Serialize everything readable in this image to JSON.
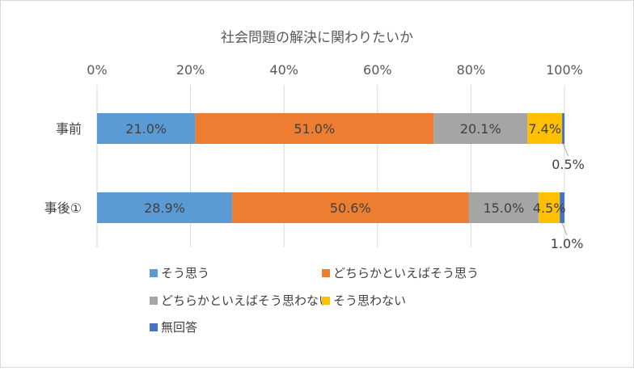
{
  "chart_data": {
    "type": "bar",
    "orientation": "horizontal",
    "stacked": true,
    "percent_stacked": true,
    "title": "社会問題の解決に関わりたいか",
    "categories": [
      "事前",
      "事後①"
    ],
    "x_ticks": [
      "0%",
      "20%",
      "40%",
      "60%",
      "80%",
      "100%"
    ],
    "xlim": [
      0,
      100
    ],
    "grid": true,
    "legend_position": "bottom",
    "series": [
      {
        "name": "そう思う",
        "color": "#5B9BD5",
        "values": [
          21.0,
          28.9
        ],
        "labels": [
          "21.0%",
          "28.9%"
        ]
      },
      {
        "name": "どちらかといえばそう思う",
        "color": "#ED7D31",
        "values": [
          51.0,
          50.6
        ],
        "labels": [
          "51.0%",
          "50.6%"
        ]
      },
      {
        "name": "どちらかといえばそう思わない",
        "color": "#A5A5A5",
        "values": [
          20.1,
          15.0
        ],
        "labels": [
          "20.1%",
          "15.0%"
        ]
      },
      {
        "name": "そう思わない",
        "color": "#FFC000",
        "values": [
          7.4,
          4.5
        ],
        "labels": [
          "7.4%",
          "4.5%"
        ]
      },
      {
        "name": "無回答",
        "color": "#4472C4",
        "values": [
          0.5,
          1.0
        ],
        "labels": [
          "0.5%",
          "1.0%"
        ]
      }
    ]
  }
}
